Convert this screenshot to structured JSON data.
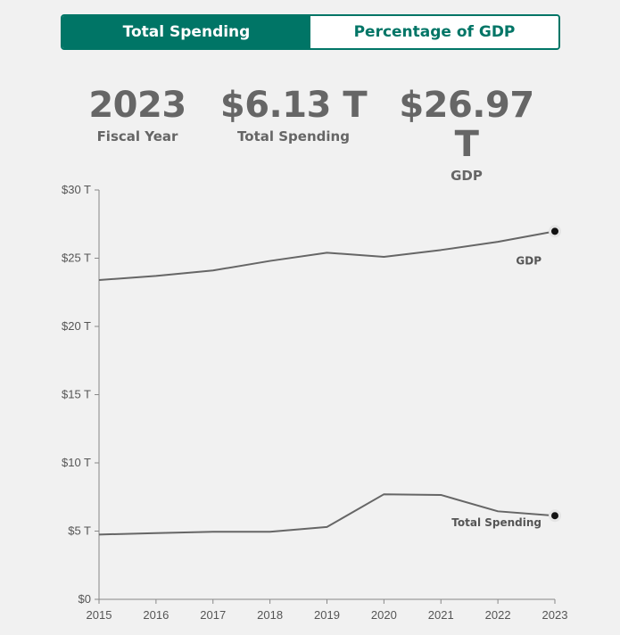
{
  "toggle": {
    "options": [
      "Total Spending",
      "Percentage of GDP"
    ],
    "active": "Total Spending"
  },
  "stats": {
    "fiscal_year": {
      "value": "2023",
      "label": "Fiscal Year"
    },
    "total_spending": {
      "value": "$6.13 T",
      "label": "Total Spending"
    },
    "gdp": {
      "value": "$26.97 T",
      "label": "GDP"
    }
  },
  "colors": {
    "accent": "#007566",
    "line": "#666666",
    "text": "#666666",
    "background": "#f1f1f1"
  },
  "chart_data": {
    "type": "line",
    "x": [
      2015,
      2016,
      2017,
      2018,
      2019,
      2020,
      2021,
      2022,
      2023
    ],
    "x_tick_labels": [
      "2015",
      "2016",
      "2017",
      "2018",
      "2019",
      "2020",
      "2021",
      "2022",
      "2023"
    ],
    "y_ticks": [
      0,
      5,
      10,
      15,
      20,
      25,
      30
    ],
    "y_tick_labels": [
      "$0",
      "$5 T",
      "$10 T",
      "$15 T",
      "$20 T",
      "$25 T",
      "$30 T"
    ],
    "ylim": [
      0,
      30
    ],
    "grid": false,
    "series": [
      {
        "name": "GDP",
        "values": [
          23.4,
          23.7,
          24.1,
          24.8,
          25.4,
          25.1,
          25.6,
          26.2,
          26.97
        ]
      },
      {
        "name": "Total Spending",
        "values": [
          4.75,
          4.85,
          4.95,
          4.95,
          5.3,
          7.7,
          7.65,
          6.45,
          6.13
        ]
      }
    ]
  }
}
